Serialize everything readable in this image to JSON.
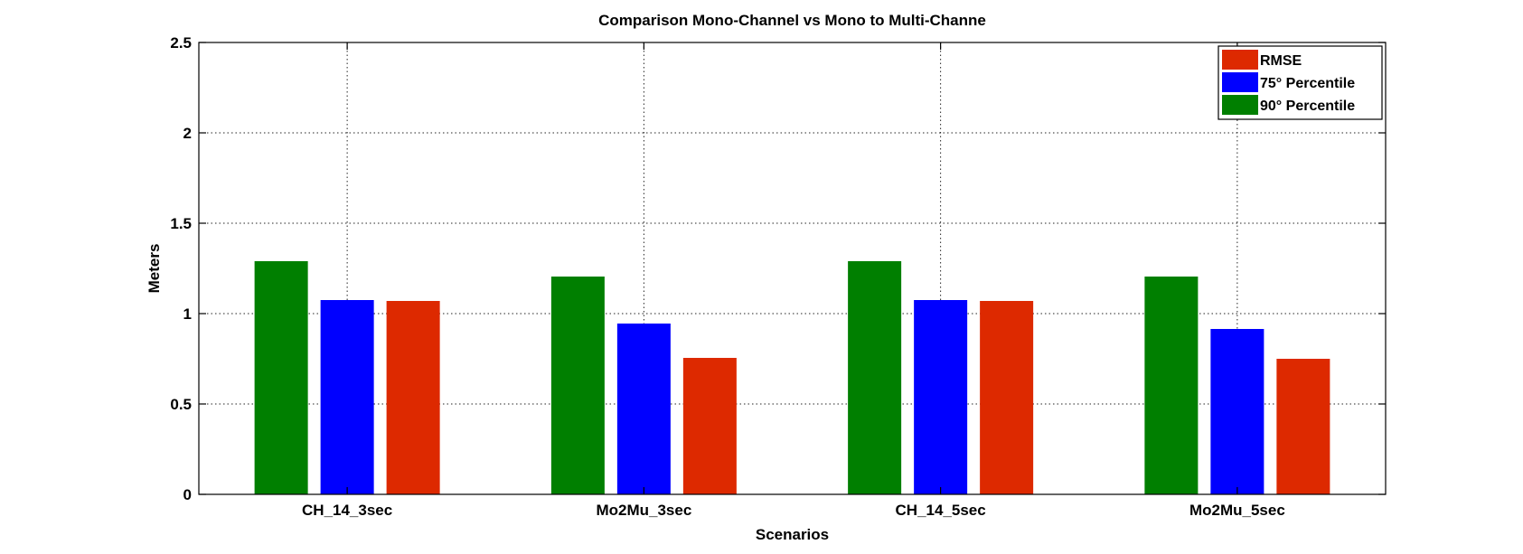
{
  "chart_data": {
    "type": "bar",
    "title": "Comparison Mono-Channel vs Mono to Multi-Channe",
    "xlabel": "Scenarios",
    "ylabel": "Meters",
    "categories": [
      "CH_14_3sec",
      "Mo2Mu_3sec",
      "CH_14_5sec",
      "Mo2Mu_5sec"
    ],
    "ylim": [
      0,
      2.5
    ],
    "yticks": [
      0,
      0.5,
      1,
      1.5,
      2,
      2.5
    ],
    "ytick_labels": [
      "0",
      "0.5",
      "1",
      "1.5",
      "2",
      "2.5"
    ],
    "grid": true,
    "legend_position": "top-right",
    "series": [
      {
        "name": "90° Percentile",
        "color": "#007f00",
        "values": [
          1.29,
          1.205,
          1.29,
          1.205
        ]
      },
      {
        "name": "75° Percentile",
        "color": "#0000ff",
        "values": [
          1.075,
          0.945,
          1.075,
          0.915
        ]
      },
      {
        "name": "RMSE",
        "color": "#dd2900",
        "values": [
          1.07,
          0.755,
          1.07,
          0.75
        ]
      }
    ],
    "legend_order": [
      "RMSE",
      "75° Percentile",
      "90° Percentile"
    ]
  }
}
